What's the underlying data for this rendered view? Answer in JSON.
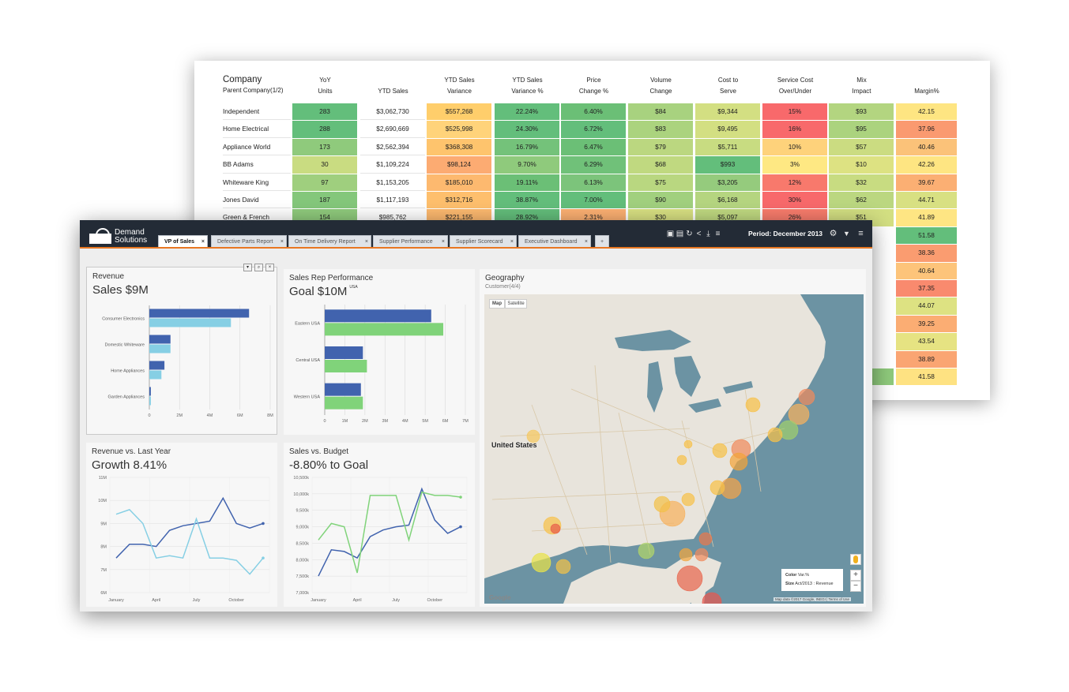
{
  "table": {
    "headers": [
      {
        "key": "company",
        "main": "Company",
        "sub": "Parent Company(1/2)"
      },
      {
        "key": "yoy_units",
        "label": "YoY\nUnits"
      },
      {
        "key": "ytd_sales",
        "label": "YTD Sales"
      },
      {
        "key": "ytd_sales_variance",
        "label": "YTD Sales\nVariance"
      },
      {
        "key": "ytd_sales_variance_pct",
        "label": "YTD Sales\nVariance %"
      },
      {
        "key": "price_change_pct",
        "label": "Price\nChange %"
      },
      {
        "key": "volume_change",
        "label": "Volume\nChange"
      },
      {
        "key": "cost_to_serve",
        "label": "Cost to\nServe"
      },
      {
        "key": "service_cost",
        "label": "Service Cost\nOver/Under"
      },
      {
        "key": "mix_impact",
        "label": "Mix\nImpact"
      },
      {
        "key": "margin_pct",
        "label": "Margin%"
      }
    ],
    "rows": [
      {
        "name": "Independent",
        "cells": [
          "283",
          "$3,062,730",
          "$557,268",
          "22.24%",
          "6.40%",
          "$84",
          "$9,344",
          "15%",
          "$93",
          "42.15"
        ],
        "colors": [
          "#63be7b",
          "",
          "#ffce6b",
          "#63be7b",
          "#6bbf76",
          "#a8d27f",
          "#d3df82",
          "#f8696b",
          "#b3d580",
          "#fee582"
        ]
      },
      {
        "name": "Home Electrical",
        "cells": [
          "288",
          "$2,690,669",
          "$525,998",
          "24.30%",
          "6.72%",
          "$83",
          "$9,495",
          "16%",
          "$95",
          "37.96"
        ],
        "colors": [
          "#63be7b",
          "",
          "#ffd37a",
          "#63be7b",
          "#63be7b",
          "#abd37e",
          "#d3df82",
          "#f8696b",
          "#abd37e",
          "#fa9a70"
        ]
      },
      {
        "name": "Appliance World",
        "cells": [
          "173",
          "$2,562,394",
          "$368,308",
          "16.79%",
          "6.47%",
          "$79",
          "$5,711",
          "10%",
          "$57",
          "40.46"
        ],
        "colors": [
          "#8fca7c",
          "",
          "#fec46d",
          "#74c27a",
          "#6bbf76",
          "#bbd780",
          "#c8dc81",
          "#fed27b",
          "#cbdc81",
          "#fbc279"
        ]
      },
      {
        "name": "BB Adams",
        "cells": [
          "30",
          "$1,109,224",
          "$98,124",
          "9.70%",
          "6.29%",
          "$68",
          "$993",
          "3%",
          "$10",
          "42.26"
        ],
        "colors": [
          "#c9dc81",
          "",
          "#fcab72",
          "#8fca7c",
          "#70c179",
          "#c0d980",
          "#63be7b",
          "#fee883",
          "#dde282",
          "#fee582"
        ]
      },
      {
        "name": "Whiteware King",
        "cells": [
          "97",
          "$1,153,205",
          "$185,010",
          "19.11%",
          "6.13%",
          "$75",
          "$3,205",
          "12%",
          "$32",
          "39.67"
        ],
        "colors": [
          "#9fcf7e",
          "",
          "#fdb96f",
          "#6bbf76",
          "#7cc47b",
          "#b9d780",
          "#95cb7d",
          "#f8796c",
          "#c8dc81",
          "#fbaf73"
        ]
      },
      {
        "name": "Jones David",
        "cells": [
          "187",
          "$1,117,193",
          "$312,716",
          "38.87%",
          "7.00%",
          "$90",
          "$6,168",
          "30%",
          "$62",
          "44.71"
        ],
        "colors": [
          "#84c77b",
          "",
          "#febf6d",
          "#63be7b",
          "#63be7b",
          "#a1d07e",
          "#b5d580",
          "#f8696b",
          "#bbd780",
          "#d8e082"
        ]
      },
      {
        "name": "Green & French",
        "cells": [
          "154",
          "$985,762",
          "$221,155",
          "28.92%",
          "2.31%",
          "$30",
          "$5,097",
          "26%",
          "$51",
          "41.89"
        ],
        "colors": [
          "#8fca7c",
          "",
          "#fdb96f",
          "#63be7b",
          "#fcb072",
          "#d8e082",
          "#c0d980",
          "#f97c6c",
          "#d3df82",
          "#fee583"
        ]
      }
    ],
    "margin_extra": [
      {
        "value": "51.58",
        "color": "#63be7b"
      },
      {
        "value": "38.36",
        "color": "#fa9c70"
      },
      {
        "value": "40.64",
        "color": "#fdc47a"
      },
      {
        "value": "37.35",
        "color": "#f98a6e"
      },
      {
        "value": "44.07",
        "color": "#dde282"
      },
      {
        "value": "39.25",
        "color": "#fbad73"
      },
      {
        "value": "43.54",
        "color": "#e6e382"
      },
      {
        "value": "38.89",
        "color": "#faa572"
      },
      {
        "value": "41.58",
        "color": "#fee282"
      }
    ]
  },
  "app": {
    "logo_line1": "Demand",
    "logo_line2": "Solutions",
    "tabs": [
      "VP of Sales",
      "Defective Parts Report",
      "On Time Delivery Report",
      "Supplier Performance",
      "Supplier Scorecard",
      "Executive Dashboard"
    ],
    "add_tab": "+",
    "period": "Period: December 2013",
    "toolbar_icons": [
      "save-icon",
      "save-as-icon",
      "refresh-icon",
      "share-icon",
      "download-icon",
      "list-icon"
    ],
    "colors": {
      "topbar": "#232b36",
      "accent": "#e87722",
      "dark_blue": "#4163ae",
      "light_blue": "#86cfe4",
      "green": "#80d37a"
    }
  },
  "panels": {
    "revenue": {
      "title": "Revenue",
      "subtitle": "Sales $9M"
    },
    "sales_rep": {
      "title": "Sales Rep Performance",
      "subtitle": "Goal $10M",
      "subtitle_note": "USA"
    },
    "geography": {
      "title": "Geography",
      "subtitle": "Customer(4/4)",
      "map_btn": "Map",
      "sat_btn": "Satellite",
      "country_label": "United States",
      "legend_color": "Color",
      "legend_color_val": "Var.%",
      "legend_size": "Size",
      "legend_size_val": "Act/2013 : Revenue",
      "zoom_in": "+",
      "zoom_out": "−",
      "attribution": "Map data ©2017 Google, INEGI",
      "terms": "Terms of Use",
      "google": "Google"
    },
    "rev_vs_ly": {
      "title": "Revenue vs. Last Year",
      "subtitle": "Growth 8.41%"
    },
    "sales_vs_budget": {
      "title": "Sales vs. Budget",
      "subtitle": "-8.80% to Goal"
    }
  },
  "chart_data": [
    {
      "type": "bar",
      "title": "Revenue",
      "subtitle": "Sales $9M",
      "categories": [
        "Consumer Electronics",
        "Domestic Whiteware",
        "Home Appliances",
        "Garden Appliances"
      ],
      "series": [
        {
          "values": [
            6.6,
            1.4,
            1.0,
            0.1
          ]
        },
        {
          "values": [
            5.4,
            1.4,
            0.8,
            0.1
          ]
        }
      ],
      "x_ticks": [
        "0",
        "2M",
        "4M",
        "6M",
        "8M"
      ],
      "xlim": [
        0,
        8
      ]
    },
    {
      "type": "bar",
      "title": "Sales Rep Performance",
      "subtitle": "Goal $10M",
      "categories": [
        "Eastern USA",
        "Central USA",
        "Western USA"
      ],
      "series": [
        {
          "values": [
            5.3,
            1.9,
            1.8
          ]
        },
        {
          "values": [
            5.9,
            2.1,
            1.9
          ]
        }
      ],
      "x_ticks": [
        "0",
        "1M",
        "2M",
        "3M",
        "4M",
        "5M",
        "6M",
        "7M"
      ],
      "xlim": [
        0,
        7
      ]
    },
    {
      "type": "line",
      "title": "Revenue vs. Last Year",
      "subtitle": "Growth 8.41%",
      "x_ticks": [
        "January",
        "April",
        "July",
        "October"
      ],
      "y_ticks": [
        "11M",
        "10M",
        "9M",
        "8M",
        "7M",
        "6M"
      ],
      "ylim": [
        6,
        11
      ],
      "series": [
        {
          "values": [
            7.5,
            8.1,
            8.1,
            8.0,
            8.7,
            8.9,
            9.0,
            9.1,
            10.1,
            9.0,
            8.8,
            9.0
          ]
        },
        {
          "values": [
            9.4,
            9.6,
            9.0,
            7.5,
            7.6,
            7.5,
            9.2,
            7.5,
            7.5,
            7.4,
            6.8,
            7.5
          ]
        }
      ]
    },
    {
      "type": "line",
      "title": "Sales vs. Budget",
      "subtitle": "-8.80% to Goal",
      "x_ticks": [
        "January",
        "April",
        "July",
        "October"
      ],
      "y_ticks": [
        "10,500k",
        "10,000k",
        "9,500k",
        "9,000k",
        "8,500k",
        "8,000k",
        "7,500k",
        "7,000k"
      ],
      "ylim": [
        7000,
        10500
      ],
      "series": [
        {
          "values": [
            7500,
            8300,
            8250,
            8050,
            8700,
            8900,
            9000,
            9050,
            10150,
            9200,
            8800,
            9000
          ]
        },
        {
          "values": [
            8600,
            9100,
            9000,
            7600,
            9950,
            9950,
            9950,
            8600,
            10050,
            9950,
            9950,
            9900
          ]
        }
      ]
    }
  ]
}
